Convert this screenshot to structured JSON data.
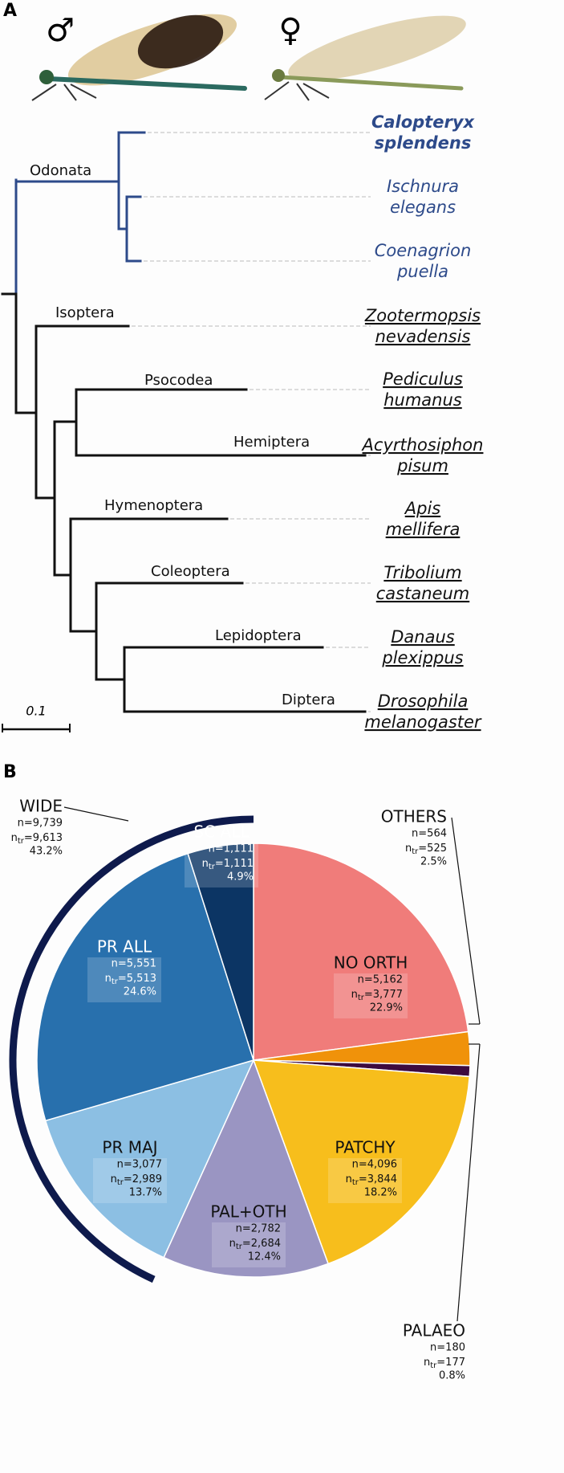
{
  "panel_a": {
    "label": "A",
    "male_symbol": "♂",
    "female_symbol": "♀",
    "scale_label": "0.1",
    "clades": [
      "Odonata",
      "Isoptera",
      "Psocodea",
      "Hemiptera",
      "Hymenoptera",
      "Coleoptera",
      "Lepidoptera",
      "Diptera"
    ],
    "species": [
      [
        "Calopteryx",
        "splendens"
      ],
      [
        "Ischnura",
        "elegans"
      ],
      [
        "Coenagrion",
        "puella"
      ],
      [
        "Zootermopsis",
        "nevadensis"
      ],
      [
        "Pediculus",
        "humanus"
      ],
      [
        "Acyrthosiphon",
        "pisum"
      ],
      [
        "Apis",
        "mellifera"
      ],
      [
        "Tribolium",
        "castaneum"
      ],
      [
        "Danaus",
        "plexippus"
      ],
      [
        "Drosophila",
        "melanogaster"
      ]
    ]
  },
  "chart_data": {
    "type": "pie",
    "panel_label": "B",
    "categories": [
      "NO ORTH",
      "OTHERS",
      "PALAEO",
      "PATCHY",
      "PAL+OTH",
      "PR MAJ",
      "PR ALL",
      "SC ALL"
    ],
    "values": [
      22.9,
      2.5,
      0.8,
      18.2,
      12.4,
      13.7,
      24.6,
      4.9
    ],
    "value_labels": [
      "22.9%",
      "2.5%",
      "0.8%",
      "18.2%",
      "12.4%",
      "13.7%",
      "24.6%",
      "4.9%"
    ],
    "colors": [
      "#f07c7a",
      "#f0920a",
      "#3d0a3f",
      "#f7be1c",
      "#9a95c2",
      "#8cbfe3",
      "#2870ad",
      "#0c3564"
    ],
    "n_labels": [
      "n=5,162",
      "n=564",
      "n=180",
      "n=4,096",
      "n=2,782",
      "n=3,077",
      "n=5,551",
      "n=1,111"
    ],
    "n_tr_symbol": "n",
    "n_tr_subscript": "tr",
    "n_tr_values": [
      "=3,777",
      "=525",
      "=177",
      "=3,844",
      "=2,684",
      "=2,989",
      "=5,513",
      "=1,111"
    ],
    "groups": [
      {
        "name": "WIDE",
        "n_label": "n=9,739",
        "n_tr_value": "=9,613",
        "value": 43.2,
        "value_label": "43.2%",
        "color": "#0e1a4c"
      }
    ]
  }
}
